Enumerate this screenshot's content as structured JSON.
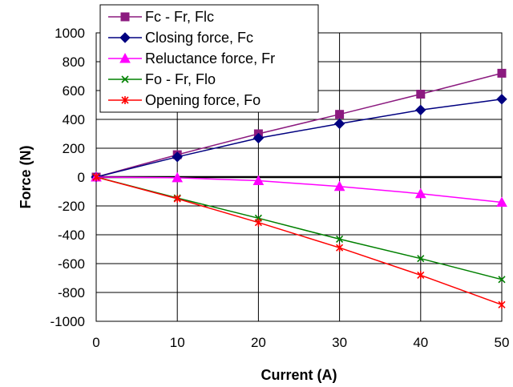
{
  "chart_data": {
    "type": "line",
    "xlabel": "Current (A)",
    "ylabel": "Force (N)",
    "x": [
      0,
      10,
      20,
      30,
      40,
      50
    ],
    "xlim": [
      0,
      50
    ],
    "ylim": [
      -1000,
      1000
    ],
    "x_ticks": [
      "0",
      "10",
      "20",
      "30",
      "40",
      "50"
    ],
    "y_ticks": [
      "1000",
      "800",
      "600",
      "400",
      "200",
      "0",
      "-200",
      "-400",
      "-600",
      "-800",
      "-1000"
    ],
    "grid": true,
    "legend_position": "top-center",
    "series": [
      {
        "name": "Fc - Fr, Flc",
        "color": "#8B1A7F",
        "marker": "square",
        "values": [
          0,
          155,
          300,
          435,
          575,
          720
        ]
      },
      {
        "name": "Closing force, Fc",
        "color": "#000080",
        "marker": "diamond",
        "values": [
          0,
          140,
          270,
          370,
          465,
          540
        ]
      },
      {
        "name": "Reluctance force, Fr",
        "color": "#FF00FF",
        "marker": "triangle",
        "values": [
          0,
          -5,
          -25,
          -65,
          -115,
          -175
        ]
      },
      {
        "name": "Fo - Fr, Flo",
        "color": "#008000",
        "marker": "x",
        "values": [
          0,
          -145,
          -285,
          -430,
          -565,
          -710
        ]
      },
      {
        "name": "Opening force, Fo",
        "color": "#FF0000",
        "marker": "star",
        "values": [
          0,
          -150,
          -315,
          -490,
          -680,
          -885
        ]
      }
    ]
  }
}
